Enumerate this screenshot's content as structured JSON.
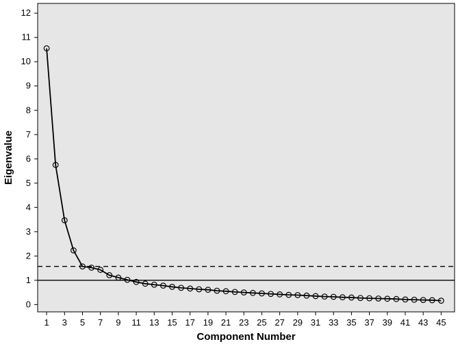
{
  "chart_data": {
    "type": "line",
    "title": "",
    "xlabel": "Component Number",
    "ylabel": "Eigenvalue",
    "xlim": [
      0,
      46.5
    ],
    "ylim": [
      -0.3,
      12.4
    ],
    "x_ticks": [
      1,
      3,
      5,
      7,
      9,
      11,
      13,
      15,
      17,
      19,
      21,
      23,
      25,
      27,
      29,
      31,
      33,
      35,
      37,
      39,
      41,
      43,
      45
    ],
    "y_ticks": [
      0,
      1,
      2,
      3,
      4,
      5,
      6,
      7,
      8,
      9,
      10,
      11,
      12
    ],
    "grid": false,
    "legend": "none",
    "reference_lines": [
      {
        "y": 1.0,
        "style": "solid"
      },
      {
        "y": 1.57,
        "style": "dashed"
      }
    ],
    "series": [
      {
        "x": [
          1,
          2,
          3,
          4,
          5,
          6,
          7,
          8,
          9,
          10,
          11,
          12,
          13,
          14,
          15,
          16,
          17,
          18,
          19,
          20,
          21,
          22,
          23,
          24,
          25,
          26,
          27,
          28,
          29,
          30,
          31,
          32,
          33,
          34,
          35,
          36,
          37,
          38,
          39,
          40,
          41,
          42,
          43,
          44,
          45
        ],
        "values": [
          10.55,
          5.75,
          3.47,
          2.23,
          1.57,
          1.52,
          1.43,
          1.21,
          1.11,
          1.02,
          0.93,
          0.86,
          0.82,
          0.78,
          0.73,
          0.69,
          0.66,
          0.63,
          0.61,
          0.57,
          0.55,
          0.52,
          0.5,
          0.48,
          0.46,
          0.44,
          0.42,
          0.4,
          0.39,
          0.37,
          0.35,
          0.33,
          0.32,
          0.3,
          0.29,
          0.27,
          0.26,
          0.25,
          0.24,
          0.23,
          0.21,
          0.2,
          0.19,
          0.18,
          0.16
        ]
      }
    ],
    "colors": {
      "plot_bg": "#e6e6e6",
      "line": "#000000"
    }
  }
}
